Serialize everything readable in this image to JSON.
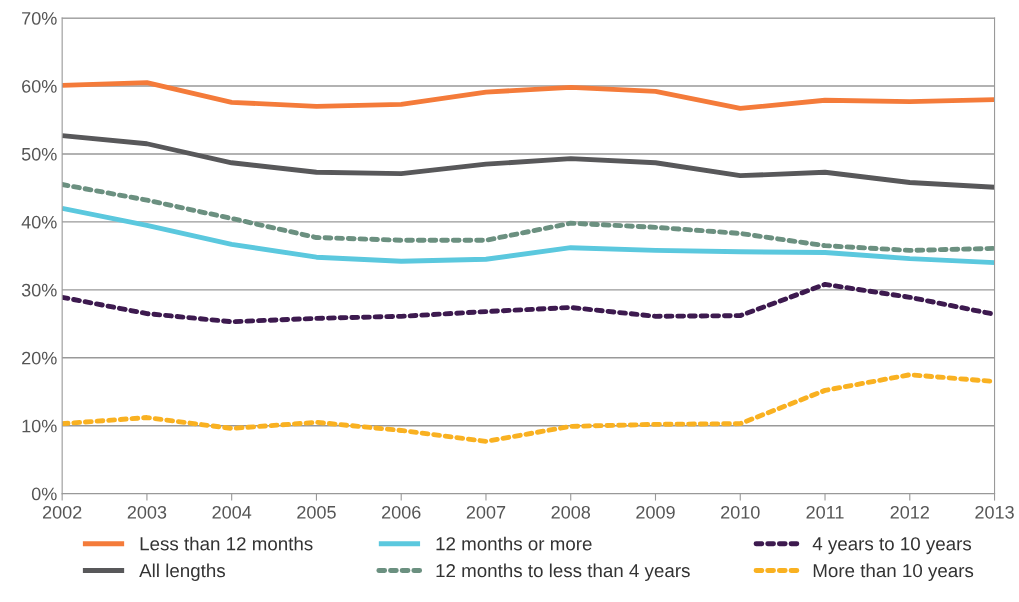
{
  "chart_data": {
    "type": "line",
    "x": [
      2002,
      2003,
      2004,
      2005,
      2006,
      2007,
      2008,
      2009,
      2010,
      2011,
      2012,
      2013
    ],
    "series": [
      {
        "name": "Less than 12 months",
        "color": "#f47b3a",
        "line_style": "solid",
        "values": [
          60.1,
          60.5,
          57.6,
          57.0,
          57.3,
          59.1,
          59.8,
          59.2,
          56.7,
          57.9,
          57.7,
          58.0
        ]
      },
      {
        "name": "All lengths",
        "color": "#58585a",
        "line_style": "solid",
        "values": [
          52.7,
          51.5,
          48.7,
          47.3,
          47.1,
          48.5,
          49.3,
          48.7,
          46.8,
          47.3,
          45.8,
          45.1
        ]
      },
      {
        "name": "12 months or more",
        "color": "#5bc8de",
        "line_style": "solid",
        "values": [
          42.0,
          39.5,
          36.7,
          34.8,
          34.2,
          34.5,
          36.2,
          35.8,
          35.6,
          35.5,
          34.6,
          34.0
        ]
      },
      {
        "name": "12 months to less than 4 years",
        "color": "#6b9080",
        "line_style": "dashed",
        "values": [
          45.5,
          43.2,
          40.5,
          37.7,
          37.3,
          37.3,
          39.8,
          39.2,
          38.3,
          36.5,
          35.8,
          36.1
        ]
      },
      {
        "name": "4 years to 10 years",
        "color": "#3d1a4f",
        "line_style": "dashed",
        "values": [
          28.9,
          26.5,
          25.3,
          25.8,
          26.1,
          26.8,
          27.4,
          26.1,
          26.2,
          30.8,
          28.9,
          26.4
        ]
      },
      {
        "name": "More than 10 years",
        "color": "#f9b121",
        "line_style": "dashed",
        "values": [
          10.3,
          11.2,
          9.6,
          10.5,
          9.3,
          7.7,
          9.9,
          10.2,
          10.3,
          15.2,
          17.5,
          16.5
        ]
      }
    ],
    "xlim": [
      2002,
      2013
    ],
    "xticks": [
      2002,
      2003,
      2004,
      2005,
      2006,
      2007,
      2008,
      2009,
      2010,
      2011,
      2012,
      2013
    ],
    "ylim": [
      0,
      70
    ],
    "yticks": [
      {
        "value": 0,
        "label": "0%"
      },
      {
        "value": 10,
        "label": "10%"
      },
      {
        "value": 20,
        "label": "20%"
      },
      {
        "value": 30,
        "label": "30%"
      },
      {
        "value": 40,
        "label": "40%"
      },
      {
        "value": 50,
        "label": "50%"
      },
      {
        "value": 60,
        "label": "60%"
      },
      {
        "value": 70,
        "label": "70%"
      }
    ],
    "grid": "y",
    "legend": "bottom"
  }
}
